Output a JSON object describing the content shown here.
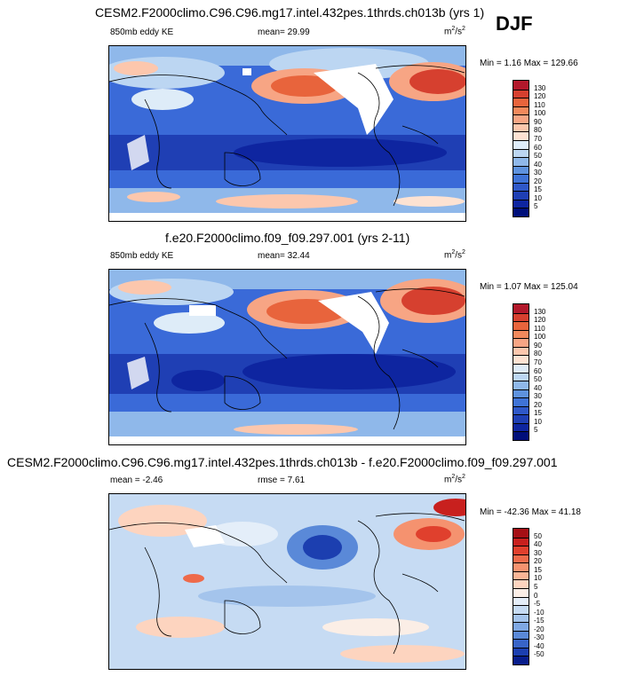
{
  "season": "DJF",
  "panels": [
    {
      "title": "CESM2.F2000climo.C96.C96.mg17.intel.432pes.1thrds.ch013b (yrs 1)",
      "left_label": "850mb eddy KE",
      "center_label": "mean=  29.99",
      "units_base": "m",
      "units_sup1": "2",
      "units_mid": "/s",
      "units_sup2": "2",
      "minmax": "Min =   1.16 Max = 129.66",
      "colorbar": {
        "levels": [
          "130",
          "120",
          "110",
          "100",
          "90",
          "80",
          "70",
          "60",
          "50",
          "40",
          "30",
          "20",
          "15",
          "10",
          "5"
        ],
        "colors": [
          "#b2182b",
          "#d6402f",
          "#e8643c",
          "#f2895c",
          "#f7a584",
          "#fcc7ad",
          "#fde2d2",
          "#deecf8",
          "#bcd6f2",
          "#8fb8ea",
          "#5e92de",
          "#3f73d6",
          "#2f58c8",
          "#1f3fb4",
          "#0e25a0",
          "#000f7a"
        ]
      }
    },
    {
      "title": "f.e20.F2000climo.f09_f09.297.001 (yrs 2-11)",
      "left_label": "850mb eddy KE",
      "center_label": "mean=  32.44",
      "units_base": "m",
      "units_sup1": "2",
      "units_mid": "/s",
      "units_sup2": "2",
      "minmax": "Min =   1.07 Max = 125.04",
      "colorbar": {
        "levels": [
          "130",
          "120",
          "110",
          "100",
          "90",
          "80",
          "70",
          "60",
          "50",
          "40",
          "30",
          "20",
          "15",
          "10",
          "5"
        ],
        "colors": [
          "#b2182b",
          "#d6402f",
          "#e8643c",
          "#f2895c",
          "#f7a584",
          "#fcc7ad",
          "#fde2d2",
          "#deecf8",
          "#bcd6f2",
          "#8fb8ea",
          "#5e92de",
          "#3f73d6",
          "#2f58c8",
          "#1f3fb4",
          "#0e25a0",
          "#000f7a"
        ]
      }
    },
    {
      "title": "CESM2.F2000climo.C96.C96.mg17.intel.432pes.1thrds.ch013b - f.e20.F2000climo.f09_f09.297.001",
      "left_label": "mean =  -2.46",
      "center_label": "rmse =   7.61",
      "units_base": "m",
      "units_sup1": "2",
      "units_mid": "/s",
      "units_sup2": "2",
      "minmax": "Min = -42.36 Max =  41.18",
      "colorbar": {
        "levels": [
          "50",
          "40",
          "30",
          "20",
          "15",
          "10",
          "5",
          "0",
          "-5",
          "-10",
          "-15",
          "-20",
          "-30",
          "-40",
          "-50"
        ],
        "colors": [
          "#a50f15",
          "#c8201e",
          "#e0402d",
          "#ee6a4a",
          "#f5926f",
          "#fab596",
          "#fdd4bf",
          "#fbeee6",
          "#e4eef9",
          "#c6dbf3",
          "#a4c4ec",
          "#7fa8e3",
          "#5a89d8",
          "#3864c8",
          "#1c3fb0",
          "#081d8c"
        ]
      }
    }
  ]
}
